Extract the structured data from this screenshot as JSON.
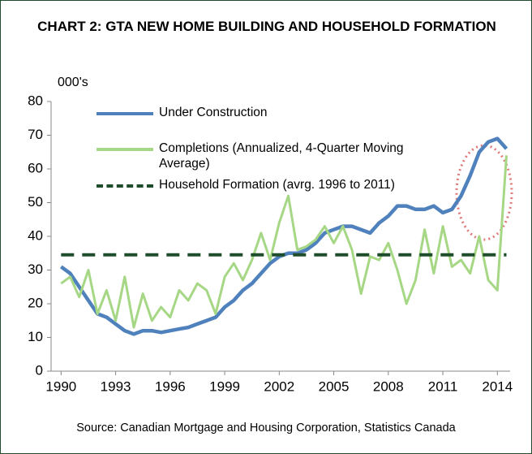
{
  "chart_data": {
    "type": "line",
    "title": "CHART 2: GTA NEW HOME BUILDING AND HOUSEHOLD FORMATION",
    "y_label": "000's",
    "source": "Source: Canadian Mortgage and Housing Corporation, Statistics Canada",
    "x": [
      1990,
      1990.5,
      1991,
      1991.5,
      1992,
      1992.5,
      1993,
      1993.5,
      1994,
      1994.5,
      1995,
      1995.5,
      1996,
      1996.5,
      1997,
      1997.5,
      1998,
      1998.5,
      1999,
      1999.5,
      2000,
      2000.5,
      2001,
      2001.5,
      2002,
      2002.5,
      2003,
      2003.5,
      2004,
      2004.5,
      2005,
      2005.5,
      2006,
      2006.5,
      2007,
      2007.5,
      2008,
      2008.5,
      2009,
      2009.5,
      2010,
      2010.5,
      2011,
      2011.5,
      2012,
      2012.5,
      2013,
      2013.5,
      2014,
      2014.5
    ],
    "series": [
      {
        "name": "Under Construction",
        "color": "#4f81bd",
        "values": [
          31,
          29,
          25,
          21,
          17,
          16,
          14,
          12,
          11,
          12,
          12,
          11.5,
          12,
          12.5,
          13,
          14,
          15,
          16,
          19,
          21,
          24,
          26,
          29,
          32,
          34,
          35,
          35,
          36,
          38,
          41,
          42,
          43,
          43,
          42,
          41,
          44,
          46,
          49,
          49,
          48,
          48,
          49,
          47,
          48,
          52,
          58,
          65,
          68,
          69,
          66
        ]
      },
      {
        "name": "Completions (Annualized, 4-Quarter Moving Average)",
        "color": "#a6d785",
        "values": [
          26,
          28,
          22,
          30,
          17,
          24,
          15,
          28,
          13,
          23,
          15,
          19,
          16,
          24,
          21,
          26,
          24,
          17,
          28,
          32,
          27,
          33,
          41,
          33,
          44,
          52,
          36,
          37,
          39,
          43,
          38,
          43,
          36,
          23,
          34,
          33,
          38,
          30,
          20,
          27,
          42,
          29,
          43,
          31,
          33,
          29,
          40,
          27,
          24,
          64
        ]
      },
      {
        "name": "Household Formation (avrg. 1996 to 2011)",
        "color": "#1e4d2b",
        "dashed": true,
        "x": [
          1990,
          2014.5
        ],
        "values": [
          34.5,
          34.5
        ]
      }
    ],
    "xlim": [
      1989.45,
      2014.7
    ],
    "ylim": [
      0,
      80
    ],
    "xticks": [
      1990,
      1993,
      1996,
      1999,
      2002,
      2005,
      2008,
      2011,
      2014
    ],
    "yticks": [
      0,
      10,
      20,
      30,
      40,
      50,
      60,
      70,
      80
    ]
  }
}
